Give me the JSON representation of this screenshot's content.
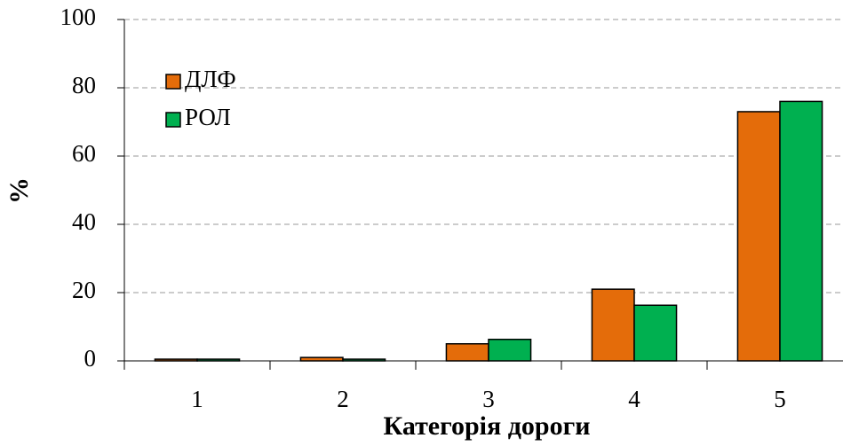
{
  "chart_data": {
    "type": "bar",
    "categories": [
      "1",
      "2",
      "3",
      "4",
      "5"
    ],
    "series": [
      {
        "name": "ДЛФ",
        "color": "#e46c0a",
        "values": [
          0.5,
          1,
          5,
          21,
          73
        ]
      },
      {
        "name": "РОЛ",
        "color": "#00b050",
        "values": [
          0.5,
          0.5,
          6.3,
          16.3,
          76
        ]
      }
    ],
    "xlabel": "Категорія дороги",
    "ylabel": "%",
    "ylim": [
      0,
      100
    ],
    "yticks": [
      0,
      20,
      40,
      60,
      80,
      100
    ],
    "grid": true,
    "legend": "upper left"
  }
}
